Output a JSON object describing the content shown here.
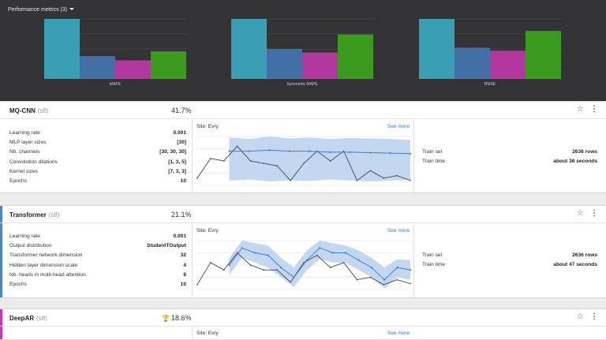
{
  "performance": {
    "title": "Performance metrics (3)",
    "series_colors": [
      "#3a9fb3",
      "#416fa6",
      "#b2379e",
      "#3a9b1f"
    ],
    "charts": [
      {
        "label": "MAPE",
        "values": [
          100,
          38,
          31,
          46
        ]
      },
      {
        "label": "Symmetric MAPE",
        "values": [
          100,
          50,
          44,
          74
        ]
      },
      {
        "label": "RMSE",
        "values": [
          100,
          52,
          47,
          80
        ]
      }
    ]
  },
  "models": [
    {
      "name": "MQ-CNN",
      "count": "(s8)",
      "score": "41.7%",
      "winner": false,
      "stripe": "#ffffff",
      "params": [
        {
          "label": "Learning rate",
          "value": "0.001"
        },
        {
          "label": "MLP layer sizes",
          "value": "[30]"
        },
        {
          "label": "Nb. channels",
          "value": "[30, 30, 30]"
        },
        {
          "label": "Convolution dilations",
          "value": "[1, 3, 5]"
        },
        {
          "label": "Kernel sizes",
          "value": "[7, 3, 3]"
        },
        {
          "label": "Epochs",
          "value": "10"
        }
      ],
      "site": "Site: Evry",
      "see_more": "See more",
      "train": [
        {
          "label": "Train set",
          "value": "2636 rows"
        },
        {
          "label": "Train time",
          "value": "about 36 seconds"
        }
      ]
    },
    {
      "name": "Transformer",
      "count": "(s8)",
      "score": "21.1%",
      "winner": false,
      "stripe": "#4a86c8",
      "params": [
        {
          "label": "Learning rate",
          "value": "0.001"
        },
        {
          "label": "Output distribution",
          "value": "StudentTOutput"
        },
        {
          "label": "Transformer network dimension",
          "value": "32"
        },
        {
          "label": "Hidden layer dimension scale",
          "value": "4"
        },
        {
          "label": "Nb. heads in multi-head attention",
          "value": "8"
        },
        {
          "label": "Epochs",
          "value": "10"
        }
      ],
      "site": "Site: Evry",
      "see_more": "See more",
      "train": [
        {
          "label": "Train set",
          "value": "2636 rows"
        },
        {
          "label": "Train time",
          "value": "about 47 seconds"
        }
      ]
    },
    {
      "name": "DeepAR",
      "count": "(s8)",
      "score": "18.6%",
      "winner": true,
      "stripe": "#c23bb0",
      "site": "Site: Evry",
      "see_more": "See more"
    }
  ],
  "forecast": {
    "actual_color": "#555555",
    "forecast_color": "#3f7fcf",
    "band_color": "#bcd3ee",
    "mqcnn": {
      "actual": [
        0.15,
        0.55,
        0.5,
        0.8,
        0.5,
        0.45,
        0.4,
        0.1,
        0.45,
        0.7,
        0.5,
        0.7,
        0.1,
        0.3,
        0.15,
        0.2,
        0.1
      ],
      "forecast": [
        0.7,
        0.7,
        0.72,
        0.7,
        0.7,
        0.68,
        0.68,
        0.67,
        0.66,
        0.65
      ],
      "band_upper": [
        0.98,
        0.95,
        1.0,
        0.96,
        0.98,
        0.95,
        0.97,
        0.96,
        0.95,
        0.93
      ],
      "band_lower": [
        0.1,
        0.12,
        0.08,
        0.1,
        0.09,
        0.12,
        0.1,
        0.08,
        0.1,
        0.11
      ]
    },
    "transformer": {
      "actual": [
        0.1,
        0.55,
        0.4,
        0.75,
        0.5,
        0.4,
        0.4,
        0.15,
        0.55,
        0.7,
        0.45,
        0.55,
        0.2,
        0.25,
        0.1,
        0.2,
        0.12
      ],
      "forecast": [
        0.5,
        0.85,
        0.75,
        0.7,
        0.45,
        0.25,
        0.6,
        0.85,
        0.75,
        0.75,
        0.6,
        0.45,
        0.2,
        0.45,
        0.4
      ],
      "band_upper": [
        0.65,
        1.0,
        0.95,
        0.9,
        0.65,
        0.45,
        0.8,
        1.0,
        0.95,
        0.9,
        0.8,
        0.65,
        0.45,
        0.62,
        0.6
      ],
      "band_lower": [
        0.3,
        0.65,
        0.55,
        0.45,
        0.25,
        0.05,
        0.4,
        0.62,
        0.55,
        0.55,
        0.4,
        0.25,
        0.02,
        0.25,
        0.2
      ]
    }
  }
}
